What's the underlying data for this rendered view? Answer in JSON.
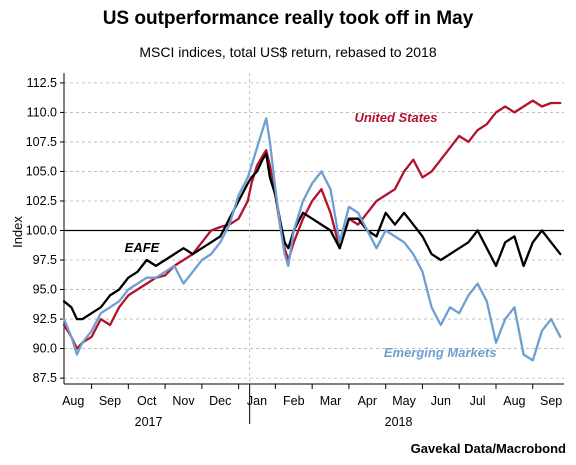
{
  "title": "US outperformance really took off in May",
  "subtitle": "MSCI indices, total US$ return, rebased to 2018",
  "source": "Gavekal Data/Macrobond",
  "chart_data": {
    "type": "line",
    "ylabel": "Index",
    "ylim": [
      87.0,
      113.0
    ],
    "yticks": [
      "87.5",
      "90.0",
      "92.5",
      "95.0",
      "97.5",
      "100.0",
      "102.5",
      "105.0",
      "107.5",
      "110.0",
      "112.5"
    ],
    "month_labels": [
      "Aug",
      "Sep",
      "Oct",
      "Nov",
      "Dec",
      "Jan",
      "Feb",
      "Mar",
      "Apr",
      "May",
      "Jun",
      "Jul",
      "Aug",
      "Sep"
    ],
    "year_labels": [
      "2017",
      "2018"
    ],
    "reference_line": 100.0,
    "annotations": {
      "us": "United States",
      "eafe": "EAFE",
      "em": "Emerging Markets"
    },
    "series": [
      {
        "name": "United States",
        "color": "#b5122e",
        "x": [
          0,
          0.2,
          0.35,
          0.5,
          0.75,
          1,
          1.25,
          1.5,
          1.75,
          2,
          2.25,
          2.5,
          2.75,
          3,
          3.25,
          3.5,
          3.75,
          4,
          4.25,
          4.5,
          4.75,
          5,
          5.1,
          5.25,
          5.4,
          5.5,
          5.6,
          5.75,
          5.9,
          6,
          6.1,
          6.25,
          6.5,
          6.75,
          7,
          7.25,
          7.5,
          7.75,
          8,
          8.25,
          8.5,
          8.75,
          9,
          9.25,
          9.5,
          9.75,
          10,
          10.25,
          10.5,
          10.75,
          11,
          11.25,
          11.5,
          11.75,
          12,
          12.25,
          12.5,
          12.75,
          13,
          13.25,
          13.5
        ],
        "y": [
          92.0,
          91.0,
          90.0,
          90.5,
          91.0,
          92.5,
          92.0,
          93.5,
          94.5,
          95.0,
          95.5,
          96.0,
          96.2,
          97.0,
          97.5,
          98.0,
          99.0,
          100.0,
          100.3,
          100.5,
          101.0,
          102.5,
          104.0,
          105.5,
          106.3,
          106.8,
          105.5,
          103.0,
          100.0,
          98.5,
          97.5,
          99.0,
          101.0,
          102.5,
          103.5,
          101.5,
          98.5,
          101.0,
          100.5,
          101.5,
          102.5,
          103.0,
          103.5,
          105.0,
          106.0,
          104.5,
          105.0,
          106.0,
          107.0,
          108.0,
          107.5,
          108.5,
          109.0,
          110.0,
          110.5,
          110.0,
          110.5,
          111.0,
          110.5,
          110.8,
          110.8
        ]
      },
      {
        "name": "EAFE",
        "color": "#000000",
        "x": [
          0,
          0.2,
          0.35,
          0.5,
          0.75,
          1,
          1.25,
          1.5,
          1.75,
          2,
          2.25,
          2.5,
          2.75,
          3,
          3.25,
          3.5,
          3.75,
          4,
          4.25,
          4.5,
          4.75,
          5,
          5.1,
          5.25,
          5.4,
          5.5,
          5.6,
          5.75,
          5.9,
          6,
          6.1,
          6.25,
          6.5,
          6.75,
          7,
          7.25,
          7.5,
          7.75,
          8,
          8.25,
          8.5,
          8.75,
          9,
          9.25,
          9.5,
          9.75,
          10,
          10.25,
          10.5,
          10.75,
          11,
          11.25,
          11.5,
          11.75,
          12,
          12.25,
          12.5,
          12.75,
          13,
          13.25,
          13.5
        ],
        "y": [
          94.0,
          93.5,
          92.5,
          92.5,
          93.0,
          93.5,
          94.5,
          95.0,
          96.0,
          96.5,
          97.5,
          97.0,
          97.5,
          98.0,
          98.5,
          98.0,
          98.5,
          99.0,
          99.5,
          101.0,
          102.5,
          104.0,
          104.5,
          105.0,
          106.0,
          106.5,
          104.5,
          103.0,
          100.5,
          99.0,
          98.5,
          100.0,
          101.5,
          101.0,
          100.5,
          100.0,
          98.5,
          101.0,
          101.0,
          100.0,
          99.5,
          101.5,
          100.5,
          101.5,
          100.5,
          99.5,
          98.0,
          97.5,
          98.0,
          98.5,
          99.0,
          100.0,
          98.5,
          97.0,
          99.0,
          99.5,
          97.0,
          99.0,
          100.0,
          99.0,
          98.0
        ]
      },
      {
        "name": "Emerging Markets",
        "color": "#6f9fd1",
        "x": [
          0,
          0.2,
          0.35,
          0.5,
          0.75,
          1,
          1.25,
          1.5,
          1.75,
          2,
          2.25,
          2.5,
          2.75,
          3,
          3.25,
          3.5,
          3.75,
          4,
          4.25,
          4.5,
          4.75,
          5,
          5.1,
          5.25,
          5.4,
          5.5,
          5.6,
          5.75,
          5.9,
          6,
          6.1,
          6.25,
          6.5,
          6.75,
          7,
          7.25,
          7.5,
          7.75,
          8,
          8.25,
          8.5,
          8.75,
          9,
          9.25,
          9.5,
          9.75,
          10,
          10.25,
          10.5,
          10.75,
          11,
          11.25,
          11.5,
          11.75,
          12,
          12.25,
          12.5,
          12.75,
          13,
          13.25,
          13.5
        ],
        "y": [
          92.5,
          91.0,
          89.5,
          90.5,
          91.5,
          93.0,
          93.5,
          94.0,
          95.0,
          95.5,
          96.0,
          96.0,
          96.5,
          97.0,
          95.5,
          96.5,
          97.5,
          98.0,
          99.0,
          100.5,
          103.0,
          104.5,
          105.5,
          107.0,
          108.5,
          109.5,
          107.5,
          103.5,
          100.0,
          98.0,
          97.0,
          100.0,
          102.5,
          104.0,
          105.0,
          103.5,
          99.0,
          102.0,
          101.5,
          100.0,
          98.5,
          100.0,
          99.5,
          99.0,
          98.0,
          96.5,
          93.5,
          92.0,
          93.5,
          93.0,
          94.5,
          95.5,
          94.0,
          90.5,
          92.5,
          93.5,
          89.5,
          89.0,
          91.5,
          92.5,
          91.0
        ]
      }
    ]
  }
}
